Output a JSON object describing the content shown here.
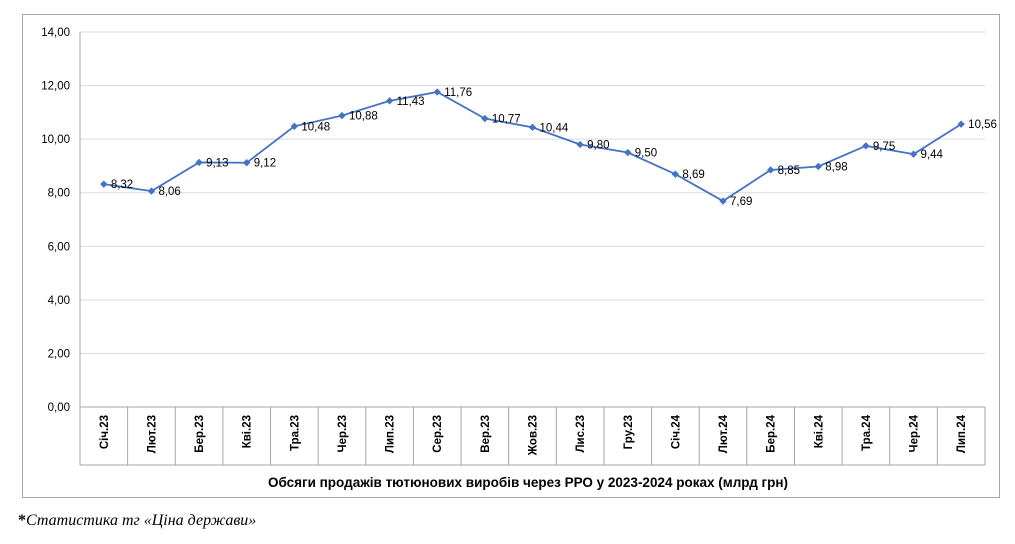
{
  "chart_data": {
    "type": "line",
    "title": "Обсяги продажів тютюнових виробів через РРО у 2023-2024 роках (млрд грн)",
    "categories": [
      "Січ.23",
      "Лют.23",
      "Бер.23",
      "Кві.23",
      "Тра.23",
      "Чер.23",
      "Лип.23",
      "Сер.23",
      "Вер.23",
      "Жов.23",
      "Лис.23",
      "Гру.23",
      "Січ.24",
      "Лют.24",
      "Бер.24",
      "Кві.24",
      "Тра.24",
      "Чер.24",
      "Лип.24"
    ],
    "values": [
      8.32,
      8.06,
      9.13,
      9.12,
      10.48,
      10.88,
      11.43,
      11.76,
      10.77,
      10.44,
      9.8,
      9.5,
      8.69,
      7.69,
      8.85,
      8.98,
      9.75,
      9.44,
      10.56
    ],
    "data_labels": [
      "8,32",
      "8,06",
      "9,13",
      "9,12",
      "10,48",
      "10,88",
      "11,43",
      "11,76",
      "10,77",
      "10,44",
      "9,80",
      "9,50",
      "8,69",
      "7,69",
      "8,85",
      "8,98",
      "9,75",
      "9,44",
      "10,56"
    ],
    "y_ticks": [
      "0,00",
      "2,00",
      "4,00",
      "6,00",
      "8,00",
      "10,00",
      "12,00",
      "14,00"
    ],
    "ylim": [
      0,
      14
    ],
    "grid": true,
    "line_color": "#4472c4",
    "grid_color": "#d9d9d9"
  },
  "source_note": {
    "star": "*",
    "text": "Статистика тг «Ціна держави»"
  }
}
